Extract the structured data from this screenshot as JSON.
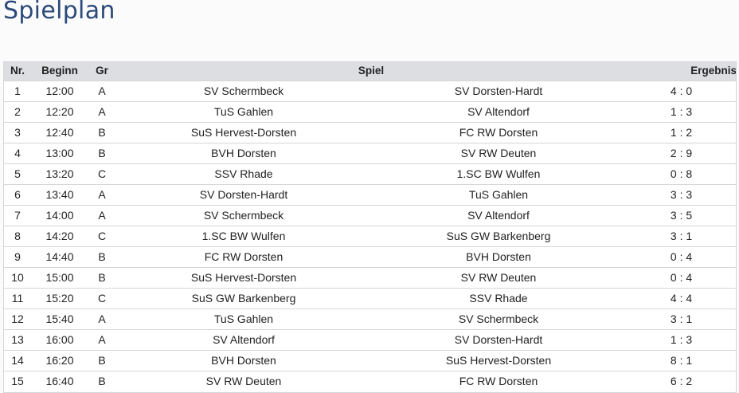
{
  "page_title": "Spielplan",
  "table": {
    "headers": {
      "nr": "Nr.",
      "beginn": "Beginn",
      "gr": "Gr",
      "spiel": "Spiel",
      "ergebnis": "Ergebnis"
    },
    "rows": [
      {
        "nr": "1",
        "beginn": "12:00",
        "gr": "A",
        "home": "SV Schermbeck",
        "away": "SV Dorsten-Hardt",
        "result": "4 : 0"
      },
      {
        "nr": "2",
        "beginn": "12:20",
        "gr": "A",
        "home": "TuS Gahlen",
        "away": "SV Altendorf",
        "result": "1 : 3"
      },
      {
        "nr": "3",
        "beginn": "12:40",
        "gr": "B",
        "home": "SuS Hervest-Dorsten",
        "away": "FC RW Dorsten",
        "result": "1 : 2"
      },
      {
        "nr": "4",
        "beginn": "13:00",
        "gr": "B",
        "home": "BVH Dorsten",
        "away": "SV RW Deuten",
        "result": "2 : 9"
      },
      {
        "nr": "5",
        "beginn": "13:20",
        "gr": "C",
        "home": "SSV Rhade",
        "away": "1.SC BW Wulfen",
        "result": "0 : 8"
      },
      {
        "nr": "6",
        "beginn": "13:40",
        "gr": "A",
        "home": "SV Dorsten-Hardt",
        "away": "TuS Gahlen",
        "result": "3 : 3"
      },
      {
        "nr": "7",
        "beginn": "14:00",
        "gr": "A",
        "home": "SV Schermbeck",
        "away": "SV Altendorf",
        "result": "3 : 5"
      },
      {
        "nr": "8",
        "beginn": "14:20",
        "gr": "C",
        "home": "1.SC BW Wulfen",
        "away": "SuS GW Barkenberg",
        "result": "3 : 1"
      },
      {
        "nr": "9",
        "beginn": "14:40",
        "gr": "B",
        "home": "FC RW Dorsten",
        "away": "BVH Dorsten",
        "result": "0 : 4"
      },
      {
        "nr": "10",
        "beginn": "15:00",
        "gr": "B",
        "home": "SuS Hervest-Dorsten",
        "away": "SV RW Deuten",
        "result": "0 : 4"
      },
      {
        "nr": "11",
        "beginn": "15:20",
        "gr": "C",
        "home": "SuS GW Barkenberg",
        "away": "SSV Rhade",
        "result": "4 : 4"
      },
      {
        "nr": "12",
        "beginn": "15:40",
        "gr": "A",
        "home": "TuS Gahlen",
        "away": "SV Schermbeck",
        "result": "3 : 1"
      },
      {
        "nr": "13",
        "beginn": "16:00",
        "gr": "A",
        "home": "SV Altendorf",
        "away": "SV Dorsten-Hardt",
        "result": "1 : 3"
      },
      {
        "nr": "14",
        "beginn": "16:20",
        "gr": "B",
        "home": "BVH Dorsten",
        "away": "SuS Hervest-Dorsten",
        "result": "8 : 1"
      },
      {
        "nr": "15",
        "beginn": "16:40",
        "gr": "B",
        "home": "SV RW Deuten",
        "away": "FC RW Dorsten",
        "result": "6 : 2"
      }
    ]
  }
}
